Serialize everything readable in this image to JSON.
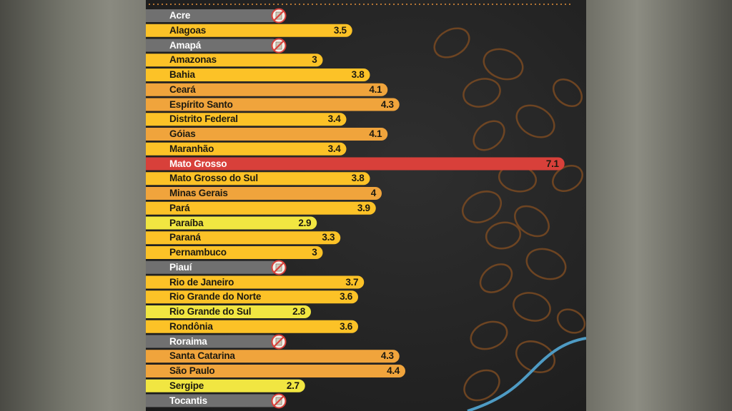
{
  "chart_data": {
    "type": "bar",
    "orientation": "horizontal",
    "categories": [
      "Acre",
      "Alagoas",
      "Amapá",
      "Amazonas",
      "Bahia",
      "Ceará",
      "Espírito Santo",
      "Distrito Federal",
      "Góias",
      "Maranhão",
      "Mato Grosso",
      "Mato Grosso do Sul",
      "Minas Gerais",
      "Pará",
      "Paraíba",
      "Paraná",
      "Pernambuco",
      "Piauí",
      "Rio de Janeiro",
      "Rio Grande do Norte",
      "Rio Grande do Sul",
      "Rondônia",
      "Roraima",
      "Santa Catarina",
      "São Paulo",
      "Sergipe",
      "Tocantis"
    ],
    "values": [
      null,
      3.5,
      null,
      3,
      3.8,
      4.1,
      4.3,
      3.4,
      4.1,
      3.4,
      7.1,
      3.8,
      4,
      3.9,
      2.9,
      3.3,
      3,
      null,
      3.7,
      3.6,
      2.8,
      3.6,
      null,
      4.3,
      4.4,
      2.7,
      null
    ],
    "value_labels": [
      "",
      "3.5",
      "",
      "3",
      "3.8",
      "4.1",
      "4.3",
      "3.4",
      "4.1",
      "3.4",
      "7.1",
      "3.8",
      "4",
      "3.9",
      "2.9",
      "3.3",
      "3",
      "",
      "3.7",
      "3.6",
      "2.8",
      "3.6",
      "",
      "4.3",
      "4.4",
      "2.7",
      ""
    ],
    "missing_marker": "no-data-icon",
    "xlim": [
      0,
      7.3
    ],
    "title": "",
    "xlabel": "",
    "ylabel": "",
    "grid": false,
    "legend": "none",
    "colors": {
      "no_data": "#707070",
      "low": "#f1e641",
      "mid": "#fcc227",
      "high": "#f0a43c",
      "max": "#d8403a",
      "background": "#262626"
    }
  }
}
